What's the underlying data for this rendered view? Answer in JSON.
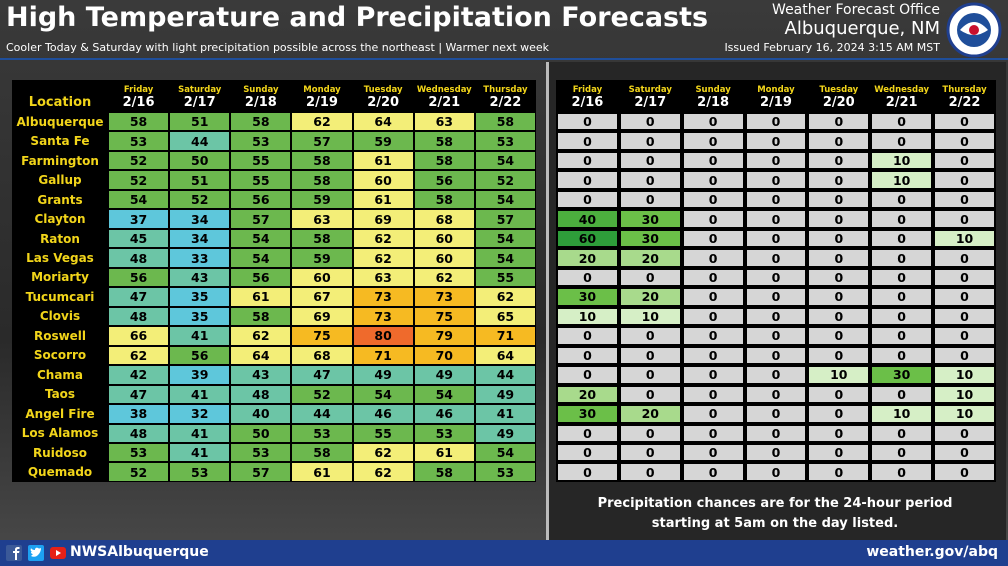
{
  "header": {
    "title": "High Temperature and Precipitation Forecasts",
    "subtitle": "Cooler Today & Saturday with light precipitation possible across the northeast | Warmer next week",
    "office": "Weather Forecast Office",
    "location": "Albuquerque, NM",
    "issued": "Issued February 16, 2024 3:15 AM MST"
  },
  "days": [
    "Friday",
    "Saturday",
    "Sunday",
    "Monday",
    "Tuesday",
    "Wednesday",
    "Thursday"
  ],
  "dates": [
    "2/16",
    "2/17",
    "2/18",
    "2/19",
    "2/20",
    "2/21",
    "2/22"
  ],
  "temperature": {
    "location_header": "Location",
    "rows": [
      {
        "location": "Albuquerque",
        "values": [
          58,
          51,
          58,
          62,
          64,
          63,
          58
        ]
      },
      {
        "location": "Santa Fe",
        "values": [
          53,
          44,
          53,
          57,
          59,
          58,
          53
        ]
      },
      {
        "location": "Farmington",
        "values": [
          52,
          50,
          55,
          58,
          61,
          58,
          54
        ]
      },
      {
        "location": "Gallup",
        "values": [
          52,
          51,
          55,
          58,
          60,
          56,
          52
        ]
      },
      {
        "location": "Grants",
        "values": [
          54,
          52,
          56,
          59,
          61,
          58,
          54
        ]
      },
      {
        "location": "Clayton",
        "values": [
          37,
          34,
          57,
          63,
          69,
          68,
          57
        ]
      },
      {
        "location": "Raton",
        "values": [
          45,
          34,
          54,
          58,
          62,
          60,
          54
        ]
      },
      {
        "location": "Las Vegas",
        "values": [
          48,
          33,
          54,
          59,
          62,
          60,
          54
        ]
      },
      {
        "location": "Moriarty",
        "values": [
          56,
          43,
          56,
          60,
          63,
          62,
          55
        ]
      },
      {
        "location": "Tucumcari",
        "values": [
          47,
          35,
          61,
          67,
          73,
          73,
          62
        ]
      },
      {
        "location": "Clovis",
        "values": [
          48,
          35,
          58,
          69,
          73,
          75,
          65
        ]
      },
      {
        "location": "Roswell",
        "values": [
          66,
          41,
          62,
          75,
          80,
          79,
          71
        ]
      },
      {
        "location": "Socorro",
        "values": [
          62,
          56,
          64,
          68,
          71,
          70,
          64
        ]
      },
      {
        "location": "Chama",
        "values": [
          42,
          39,
          43,
          47,
          49,
          49,
          44
        ]
      },
      {
        "location": "Taos",
        "values": [
          47,
          41,
          48,
          52,
          54,
          54,
          49
        ]
      },
      {
        "location": "Angel Fire",
        "values": [
          38,
          32,
          40,
          44,
          46,
          46,
          41
        ]
      },
      {
        "location": "Los Alamos",
        "values": [
          48,
          41,
          50,
          53,
          55,
          53,
          49
        ]
      },
      {
        "location": "Ruidoso",
        "values": [
          53,
          41,
          53,
          58,
          62,
          61,
          54
        ]
      },
      {
        "location": "Quemado",
        "values": [
          52,
          53,
          57,
          61,
          62,
          58,
          53
        ]
      }
    ]
  },
  "precipitation": {
    "rows": [
      [
        0,
        0,
        0,
        0,
        0,
        0,
        0
      ],
      [
        0,
        0,
        0,
        0,
        0,
        0,
        0
      ],
      [
        0,
        0,
        0,
        0,
        0,
        10,
        0
      ],
      [
        0,
        0,
        0,
        0,
        0,
        10,
        0
      ],
      [
        0,
        0,
        0,
        0,
        0,
        0,
        0
      ],
      [
        40,
        30,
        0,
        0,
        0,
        0,
        0
      ],
      [
        60,
        30,
        0,
        0,
        0,
        0,
        10
      ],
      [
        20,
        20,
        0,
        0,
        0,
        0,
        0
      ],
      [
        0,
        0,
        0,
        0,
        0,
        0,
        0
      ],
      [
        30,
        20,
        0,
        0,
        0,
        0,
        0
      ],
      [
        10,
        10,
        0,
        0,
        0,
        0,
        0
      ],
      [
        0,
        0,
        0,
        0,
        0,
        0,
        0
      ],
      [
        0,
        0,
        0,
        0,
        0,
        0,
        0
      ],
      [
        0,
        0,
        0,
        0,
        10,
        30,
        10
      ],
      [
        20,
        0,
        0,
        0,
        0,
        0,
        10
      ],
      [
        30,
        20,
        0,
        0,
        0,
        10,
        10
      ],
      [
        0,
        0,
        0,
        0,
        0,
        0,
        0
      ],
      [
        0,
        0,
        0,
        0,
        0,
        0,
        0
      ],
      [
        0,
        0,
        0,
        0,
        0,
        0,
        0
      ]
    ],
    "note": "Precipitation chances are for the 24-hour period starting at 5am on the day listed."
  },
  "footer": {
    "handle": "NWSAlbuquerque",
    "website": "weather.gov/abq"
  }
}
